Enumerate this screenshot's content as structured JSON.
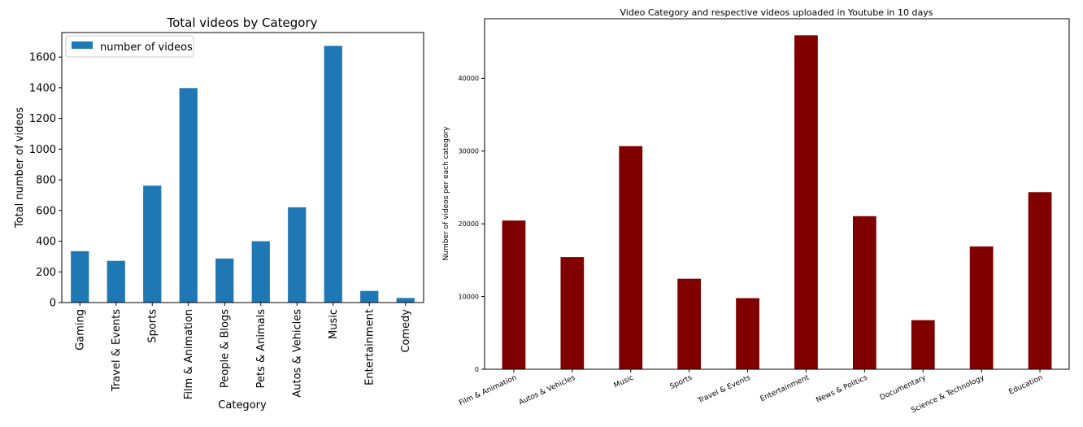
{
  "chart_data": [
    {
      "type": "bar",
      "title": "Total videos by Category",
      "xlabel": "Category",
      "ylabel": "Total number of videos",
      "categories": [
        "Gaming",
        "Travel & Events",
        "Sports",
        "Film & Animation",
        "People & Blogs",
        "Pets & Animals",
        "Autos & Vehicles",
        "Music",
        "Entertainment",
        "Comedy"
      ],
      "series": [
        {
          "name": "number of videos",
          "values": [
            335,
            272,
            762,
            1398,
            287,
            400,
            621,
            1673,
            76,
            30
          ],
          "color": "#1f77b4"
        }
      ],
      "ylim": [
        0,
        1760
      ],
      "yticks": [
        0,
        200,
        400,
        600,
        800,
        1000,
        1200,
        1400,
        1600
      ],
      "legend": "top-left",
      "grid": false
    },
    {
      "type": "bar",
      "title": "Video Category and respective videos uploaded in Youtube in 10 days",
      "xlabel": "",
      "ylabel": "Number of videos per each category",
      "categories": [
        "Film & Animation",
        "Autos & Vehicles",
        "Music",
        "Sports",
        "Travel & Events",
        "Entertainment",
        "News & Politics",
        "Documentary",
        "Science & Technology",
        "Education"
      ],
      "series": [
        {
          "values": [
            20450,
            15420,
            30680,
            12450,
            9780,
            45920,
            21050,
            6750,
            16880,
            24350
          ],
          "color": "#800000"
        }
      ],
      "ylim": [
        0,
        48200
      ],
      "yticks": [
        0,
        10000,
        20000,
        30000,
        40000
      ],
      "legend": "none",
      "grid": false
    }
  ]
}
